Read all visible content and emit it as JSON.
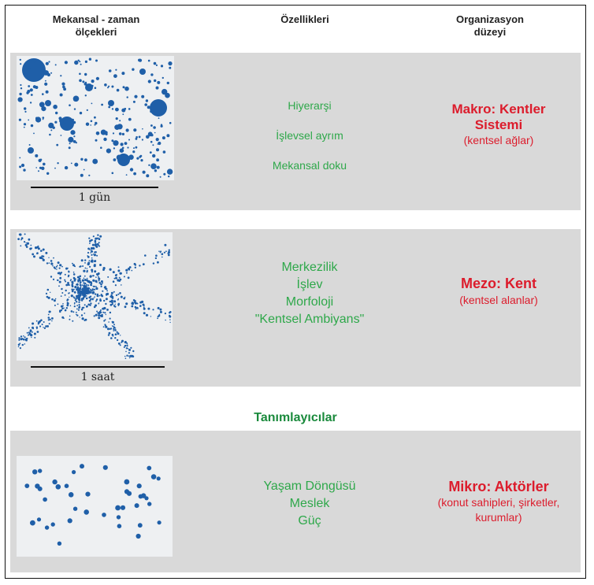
{
  "header": {
    "col1": "Mekansal - zaman\nölçekleri",
    "col2": "Özellikleri",
    "col3": "Organizasyon\ndüzeyi"
  },
  "rows": [
    {
      "scale_label": "1 gün",
      "properties": [
        "Hiyerarşi",
        "İşlevsel ayrım",
        "Mekansal doku"
      ],
      "org_title": "Makro: Kentler Sistemi",
      "org_title_line1": "Makro: Kentler",
      "org_title_line2": "Sistemi",
      "org_sub": "(kentsel ağlar)"
    },
    {
      "scale_label": "1 saat",
      "properties": [
        "Merkezilik",
        "İşlev",
        "Morfoloji",
        "\"Kentsel Ambiyans\""
      ],
      "org_title": "Mezo: Kent",
      "org_sub": "(kentsel alanlar)"
    },
    {
      "properties": [
        "Yaşam Döngüsü",
        "Meslek",
        "Güç"
      ],
      "org_title": "Mikro: Aktörler",
      "org_sub_line1": "(konut sahipleri, şirketler,",
      "org_sub_line2": "kurumlar)"
    }
  ],
  "descriptors_label": "Tanımlayıcılar",
  "colors": {
    "dot": "#1f5fa8",
    "green": "#2ea84a",
    "red": "#dc1c2c",
    "band": "#d9d9d9"
  }
}
